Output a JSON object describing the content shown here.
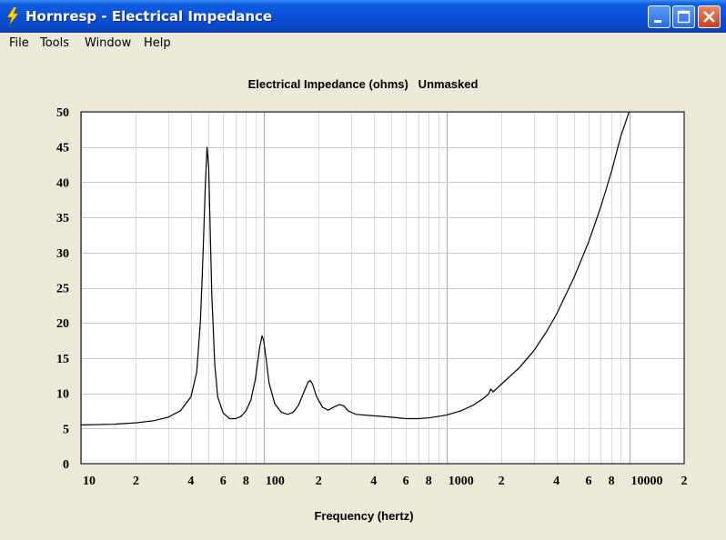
{
  "window": {
    "title": "Hornresp - Electrical Impedance"
  },
  "menu": {
    "items": [
      "File",
      "Tools",
      "Window",
      "Help"
    ]
  },
  "chart_data": {
    "type": "line",
    "title": "Electrical Impedance (ohms)   Unmasked",
    "xlabel": "Frequency (hertz)",
    "ylabel": "",
    "xscale": "log",
    "xlim": [
      10,
      20000
    ],
    "ylim": [
      0,
      50
    ],
    "grid": true,
    "x_tick_labels": [
      {
        "value": 10,
        "label": "10"
      },
      {
        "value": 20,
        "label": "2"
      },
      {
        "value": 40,
        "label": "4"
      },
      {
        "value": 60,
        "label": "6"
      },
      {
        "value": 80,
        "label": "8"
      },
      {
        "value": 100,
        "label": "100"
      },
      {
        "value": 200,
        "label": "2"
      },
      {
        "value": 400,
        "label": "4"
      },
      {
        "value": 600,
        "label": "6"
      },
      {
        "value": 800,
        "label": "8"
      },
      {
        "value": 1000,
        "label": "1000"
      },
      {
        "value": 2000,
        "label": "2"
      },
      {
        "value": 4000,
        "label": "4"
      },
      {
        "value": 6000,
        "label": "6"
      },
      {
        "value": 8000,
        "label": "8"
      },
      {
        "value": 10000,
        "label": "10000"
      },
      {
        "value": 20000,
        "label": "2"
      }
    ],
    "y_ticks": [
      0,
      5,
      10,
      15,
      20,
      25,
      30,
      35,
      40,
      45,
      50
    ],
    "series": [
      {
        "color": "#000000",
        "points": [
          [
            10,
            5.5
          ],
          [
            15,
            5.6
          ],
          [
            20,
            5.8
          ],
          [
            25,
            6.1
          ],
          [
            30,
            6.6
          ],
          [
            35,
            7.5
          ],
          [
            40,
            9.5
          ],
          [
            43,
            13.0
          ],
          [
            45,
            20.0
          ],
          [
            46,
            26.0
          ],
          [
            47,
            33.0
          ],
          [
            48,
            40.0
          ],
          [
            49,
            45.0
          ],
          [
            50,
            42.0
          ],
          [
            51,
            33.0
          ],
          [
            52,
            24.0
          ],
          [
            54,
            14.0
          ],
          [
            56,
            9.5
          ],
          [
            60,
            7.2
          ],
          [
            65,
            6.4
          ],
          [
            70,
            6.4
          ],
          [
            75,
            6.7
          ],
          [
            80,
            7.5
          ],
          [
            85,
            9.0
          ],
          [
            90,
            12.0
          ],
          [
            95,
            16.5
          ],
          [
            98,
            18.2
          ],
          [
            100,
            17.5
          ],
          [
            103,
            15.0
          ],
          [
            107,
            11.5
          ],
          [
            115,
            8.5
          ],
          [
            125,
            7.3
          ],
          [
            135,
            7.0
          ],
          [
            145,
            7.3
          ],
          [
            155,
            8.3
          ],
          [
            165,
            10.0
          ],
          [
            175,
            11.6
          ],
          [
            180,
            11.8
          ],
          [
            185,
            11.3
          ],
          [
            195,
            9.5
          ],
          [
            210,
            8.0
          ],
          [
            225,
            7.6
          ],
          [
            245,
            8.1
          ],
          [
            260,
            8.4
          ],
          [
            275,
            8.2
          ],
          [
            290,
            7.5
          ],
          [
            320,
            7.0
          ],
          [
            400,
            6.8
          ],
          [
            500,
            6.6
          ],
          [
            600,
            6.4
          ],
          [
            700,
            6.4
          ],
          [
            800,
            6.5
          ],
          [
            1000,
            6.9
          ],
          [
            1200,
            7.5
          ],
          [
            1400,
            8.3
          ],
          [
            1600,
            9.3
          ],
          [
            1700,
            9.9
          ],
          [
            1750,
            10.6
          ],
          [
            1800,
            10.2
          ],
          [
            2000,
            11.3
          ],
          [
            2500,
            13.6
          ],
          [
            3000,
            16.0
          ],
          [
            3500,
            18.6
          ],
          [
            4000,
            21.2
          ],
          [
            5000,
            26.5
          ],
          [
            6000,
            31.5
          ],
          [
            7000,
            36.5
          ],
          [
            8000,
            41.5
          ],
          [
            9000,
            46.5
          ],
          [
            10000,
            50.0
          ]
        ]
      }
    ]
  }
}
